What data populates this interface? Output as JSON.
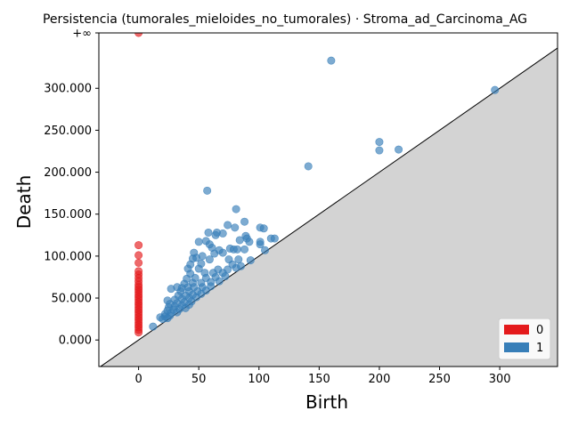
{
  "chart_data": {
    "type": "scatter",
    "title": "Persistencia (tumorales_mieloides_no_tumorales) · Stroma_ad_Carcinoma_AG",
    "xlabel": "Birth",
    "ylabel": "Death",
    "xlim": [
      -33,
      348
    ],
    "ylim": [
      -31.6,
      366
    ],
    "infinity_value": 366,
    "infinity_label": "+∞",
    "x_ticks": [
      0,
      50,
      100,
      150,
      200,
      250,
      300
    ],
    "x_tick_labels": [
      "0",
      "50",
      "100",
      "150",
      "200",
      "250",
      "300"
    ],
    "y_ticks": [
      0,
      50,
      100,
      150,
      200,
      250,
      300
    ],
    "y_tick_labels": [
      "0.000",
      "50.000",
      "100.000",
      "150.000",
      "200.000",
      "250.000",
      "300.000"
    ],
    "legend": {
      "position": "lower-right",
      "entries": [
        {
          "label": "0",
          "color": "#e41a1c"
        },
        {
          "label": "1",
          "color": "#377eb8"
        }
      ]
    },
    "colors": {
      "dim0": "#e41a1c",
      "dim1": "#377eb8",
      "diagonal_fill": "#d3d3d3",
      "infinity_line": "#808080"
    },
    "series": [
      {
        "name": "0",
        "points": [
          [
            0,
            366
          ],
          [
            0,
            113
          ],
          [
            0,
            101
          ],
          [
            0,
            92
          ],
          [
            0,
            82
          ],
          [
            0,
            78
          ],
          [
            0,
            74
          ],
          [
            0,
            70
          ],
          [
            0,
            66
          ],
          [
            0,
            63
          ],
          [
            0,
            60
          ],
          [
            0,
            57
          ],
          [
            0,
            54
          ],
          [
            0,
            51
          ],
          [
            0,
            48
          ],
          [
            0,
            45
          ],
          [
            0,
            42
          ],
          [
            0,
            39
          ],
          [
            0,
            36
          ],
          [
            0,
            33
          ],
          [
            0,
            30
          ],
          [
            0,
            27
          ],
          [
            0,
            24
          ],
          [
            0,
            21
          ],
          [
            0,
            18
          ],
          [
            0,
            15
          ],
          [
            0,
            12
          ],
          [
            0,
            9
          ]
        ]
      },
      {
        "name": "1",
        "points": [
          [
            160,
            333
          ],
          [
            296,
            298
          ],
          [
            200,
            236
          ],
          [
            200,
            226
          ],
          [
            216,
            227
          ],
          [
            141,
            207
          ],
          [
            57,
            178
          ],
          [
            81,
            156
          ],
          [
            88,
            141
          ],
          [
            74,
            137
          ],
          [
            80,
            134
          ],
          [
            101,
            134
          ],
          [
            104,
            133
          ],
          [
            58,
            128
          ],
          [
            65,
            128
          ],
          [
            64,
            125
          ],
          [
            70,
            127
          ],
          [
            89,
            124
          ],
          [
            90,
            121
          ],
          [
            110,
            121
          ],
          [
            113,
            121
          ],
          [
            50,
            117
          ],
          [
            56,
            118
          ],
          [
            84,
            119
          ],
          [
            92,
            117
          ],
          [
            101,
            117
          ],
          [
            101,
            114
          ],
          [
            59,
            114
          ],
          [
            61,
            110
          ],
          [
            76,
            109
          ],
          [
            79,
            108
          ],
          [
            82,
            108
          ],
          [
            88,
            108
          ],
          [
            105,
            107
          ],
          [
            46,
            104
          ],
          [
            63,
            103
          ],
          [
            67,
            107
          ],
          [
            70,
            104
          ],
          [
            53,
            100
          ],
          [
            45,
            97
          ],
          [
            48,
            98
          ],
          [
            59,
            96
          ],
          [
            75,
            96
          ],
          [
            83,
            96
          ],
          [
            93,
            95
          ],
          [
            43,
            90
          ],
          [
            52,
            91
          ],
          [
            78,
            90
          ],
          [
            85,
            88
          ],
          [
            41,
            85
          ],
          [
            50,
            85
          ],
          [
            66,
            84
          ],
          [
            74,
            84
          ],
          [
            81,
            86
          ],
          [
            43,
            79
          ],
          [
            55,
            80
          ],
          [
            62,
            80
          ],
          [
            70,
            80
          ],
          [
            40,
            73
          ],
          [
            47,
            74
          ],
          [
            56,
            74
          ],
          [
            64,
            75
          ],
          [
            72,
            76
          ],
          [
            38,
            67
          ],
          [
            45,
            68
          ],
          [
            52,
            68
          ],
          [
            60,
            69
          ],
          [
            67,
            70
          ],
          [
            27,
            61
          ],
          [
            32,
            63
          ],
          [
            36,
            62
          ],
          [
            41,
            63
          ],
          [
            46,
            63
          ],
          [
            53,
            63
          ],
          [
            60,
            64
          ],
          [
            35,
            58
          ],
          [
            42,
            58
          ],
          [
            49,
            58
          ],
          [
            56,
            59
          ],
          [
            33,
            53
          ],
          [
            39,
            53
          ],
          [
            45,
            54
          ],
          [
            52,
            55
          ],
          [
            24,
            47
          ],
          [
            30,
            48
          ],
          [
            36,
            49
          ],
          [
            42,
            50
          ],
          [
            48,
            51
          ],
          [
            26,
            43
          ],
          [
            32,
            44
          ],
          [
            38,
            45
          ],
          [
            44,
            46
          ],
          [
            25,
            39
          ],
          [
            30,
            40
          ],
          [
            36,
            41
          ],
          [
            42,
            42
          ],
          [
            24,
            35
          ],
          [
            29,
            36
          ],
          [
            34,
            37
          ],
          [
            39,
            38
          ],
          [
            22,
            31
          ],
          [
            27,
            32
          ],
          [
            32,
            33
          ],
          [
            18,
            27
          ],
          [
            22,
            28
          ],
          [
            26,
            29
          ],
          [
            20,
            25
          ],
          [
            24,
            26
          ],
          [
            12,
            16
          ]
        ]
      }
    ]
  }
}
